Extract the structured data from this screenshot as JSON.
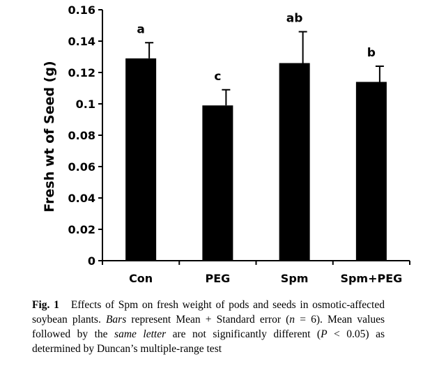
{
  "chart_data": {
    "type": "bar",
    "title": "",
    "xlabel": "",
    "ylabel": "Fresh wt of Seed (g)",
    "categories": [
      "Con",
      "PEG",
      "Spm",
      "Spm+PEG"
    ],
    "values": [
      0.129,
      0.099,
      0.126,
      0.114
    ],
    "errors": [
      0.01,
      0.01,
      0.02,
      0.01
    ],
    "significance_letters": [
      "a",
      "c",
      "ab",
      "b"
    ],
    "ylim": [
      0,
      0.16
    ],
    "yticks": [
      "0",
      "0.02",
      "0.04",
      "0.06",
      "0.08",
      "0.1",
      "0.12",
      "0.14",
      "0.16"
    ],
    "bar_color": "#000000",
    "grid": false,
    "legend": "none"
  },
  "caption": {
    "label": "Fig. 1",
    "part1": "Effects of Spm on fresh weight of pods and seeds in osmotic-affected soybean plants.",
    "bars_word": "Bars",
    "part2": "represent Mean + Standard error (",
    "n_symbol": "n",
    "part3": "= 6). Mean values followed by the",
    "same_letter": "same letter",
    "part4": "are not significantly different (",
    "p_symbol": "P",
    "part5": "< 0.05) as determined by Duncan’s multiple-range test"
  }
}
